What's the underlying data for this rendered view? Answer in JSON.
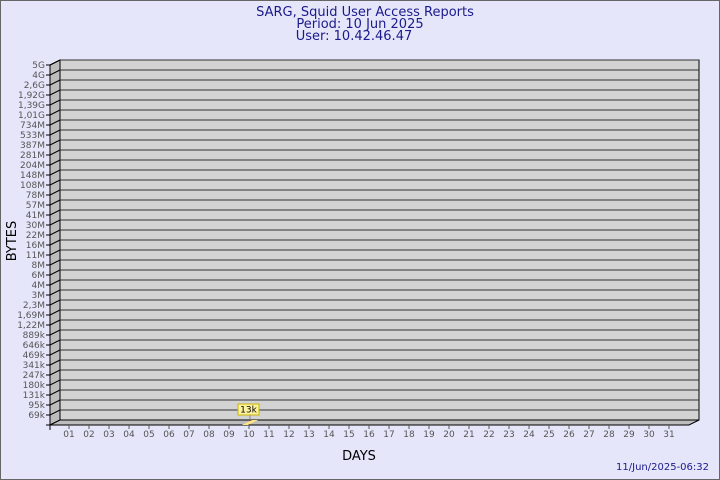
{
  "chart_data": {
    "type": "bar",
    "title": [
      "SARG, Squid User Access Reports",
      "Period: 10 Jun 2025",
      "User: 10.42.46.47"
    ],
    "xlabel": "DAYS",
    "ylabel": "BYTES",
    "ytick_labels": [
      "5G",
      "4G",
      "2,6G",
      "1,92G",
      "1,39G",
      "1,01G",
      "734M",
      "533M",
      "387M",
      "281M",
      "204M",
      "148M",
      "108M",
      "78M",
      "57M",
      "41M",
      "30M",
      "22M",
      "16M",
      "11M",
      "8M",
      "6M",
      "4M",
      "3M",
      "2,3M",
      "1,69M",
      "1,22M",
      "889k",
      "646k",
      "469k",
      "341k",
      "247k",
      "180k",
      "131k",
      "95k",
      "69k"
    ],
    "y_scale": "log",
    "categories": [
      "01",
      "02",
      "03",
      "04",
      "05",
      "06",
      "07",
      "08",
      "09",
      "10",
      "11",
      "12",
      "13",
      "14",
      "15",
      "16",
      "17",
      "18",
      "19",
      "20",
      "21",
      "22",
      "23",
      "24",
      "25",
      "26",
      "27",
      "28",
      "29",
      "30",
      "31"
    ],
    "bars": [
      {
        "day": "10",
        "value_bytes": 13000,
        "label": "13k"
      }
    ],
    "grid": true,
    "colors": {
      "background": "#e6e6fa",
      "plot": "#d3d3d3",
      "bar": "#ffe680",
      "text": "#1a1a8c"
    }
  },
  "footer": {
    "timestamp": "11/Jun/2025-06:32"
  }
}
